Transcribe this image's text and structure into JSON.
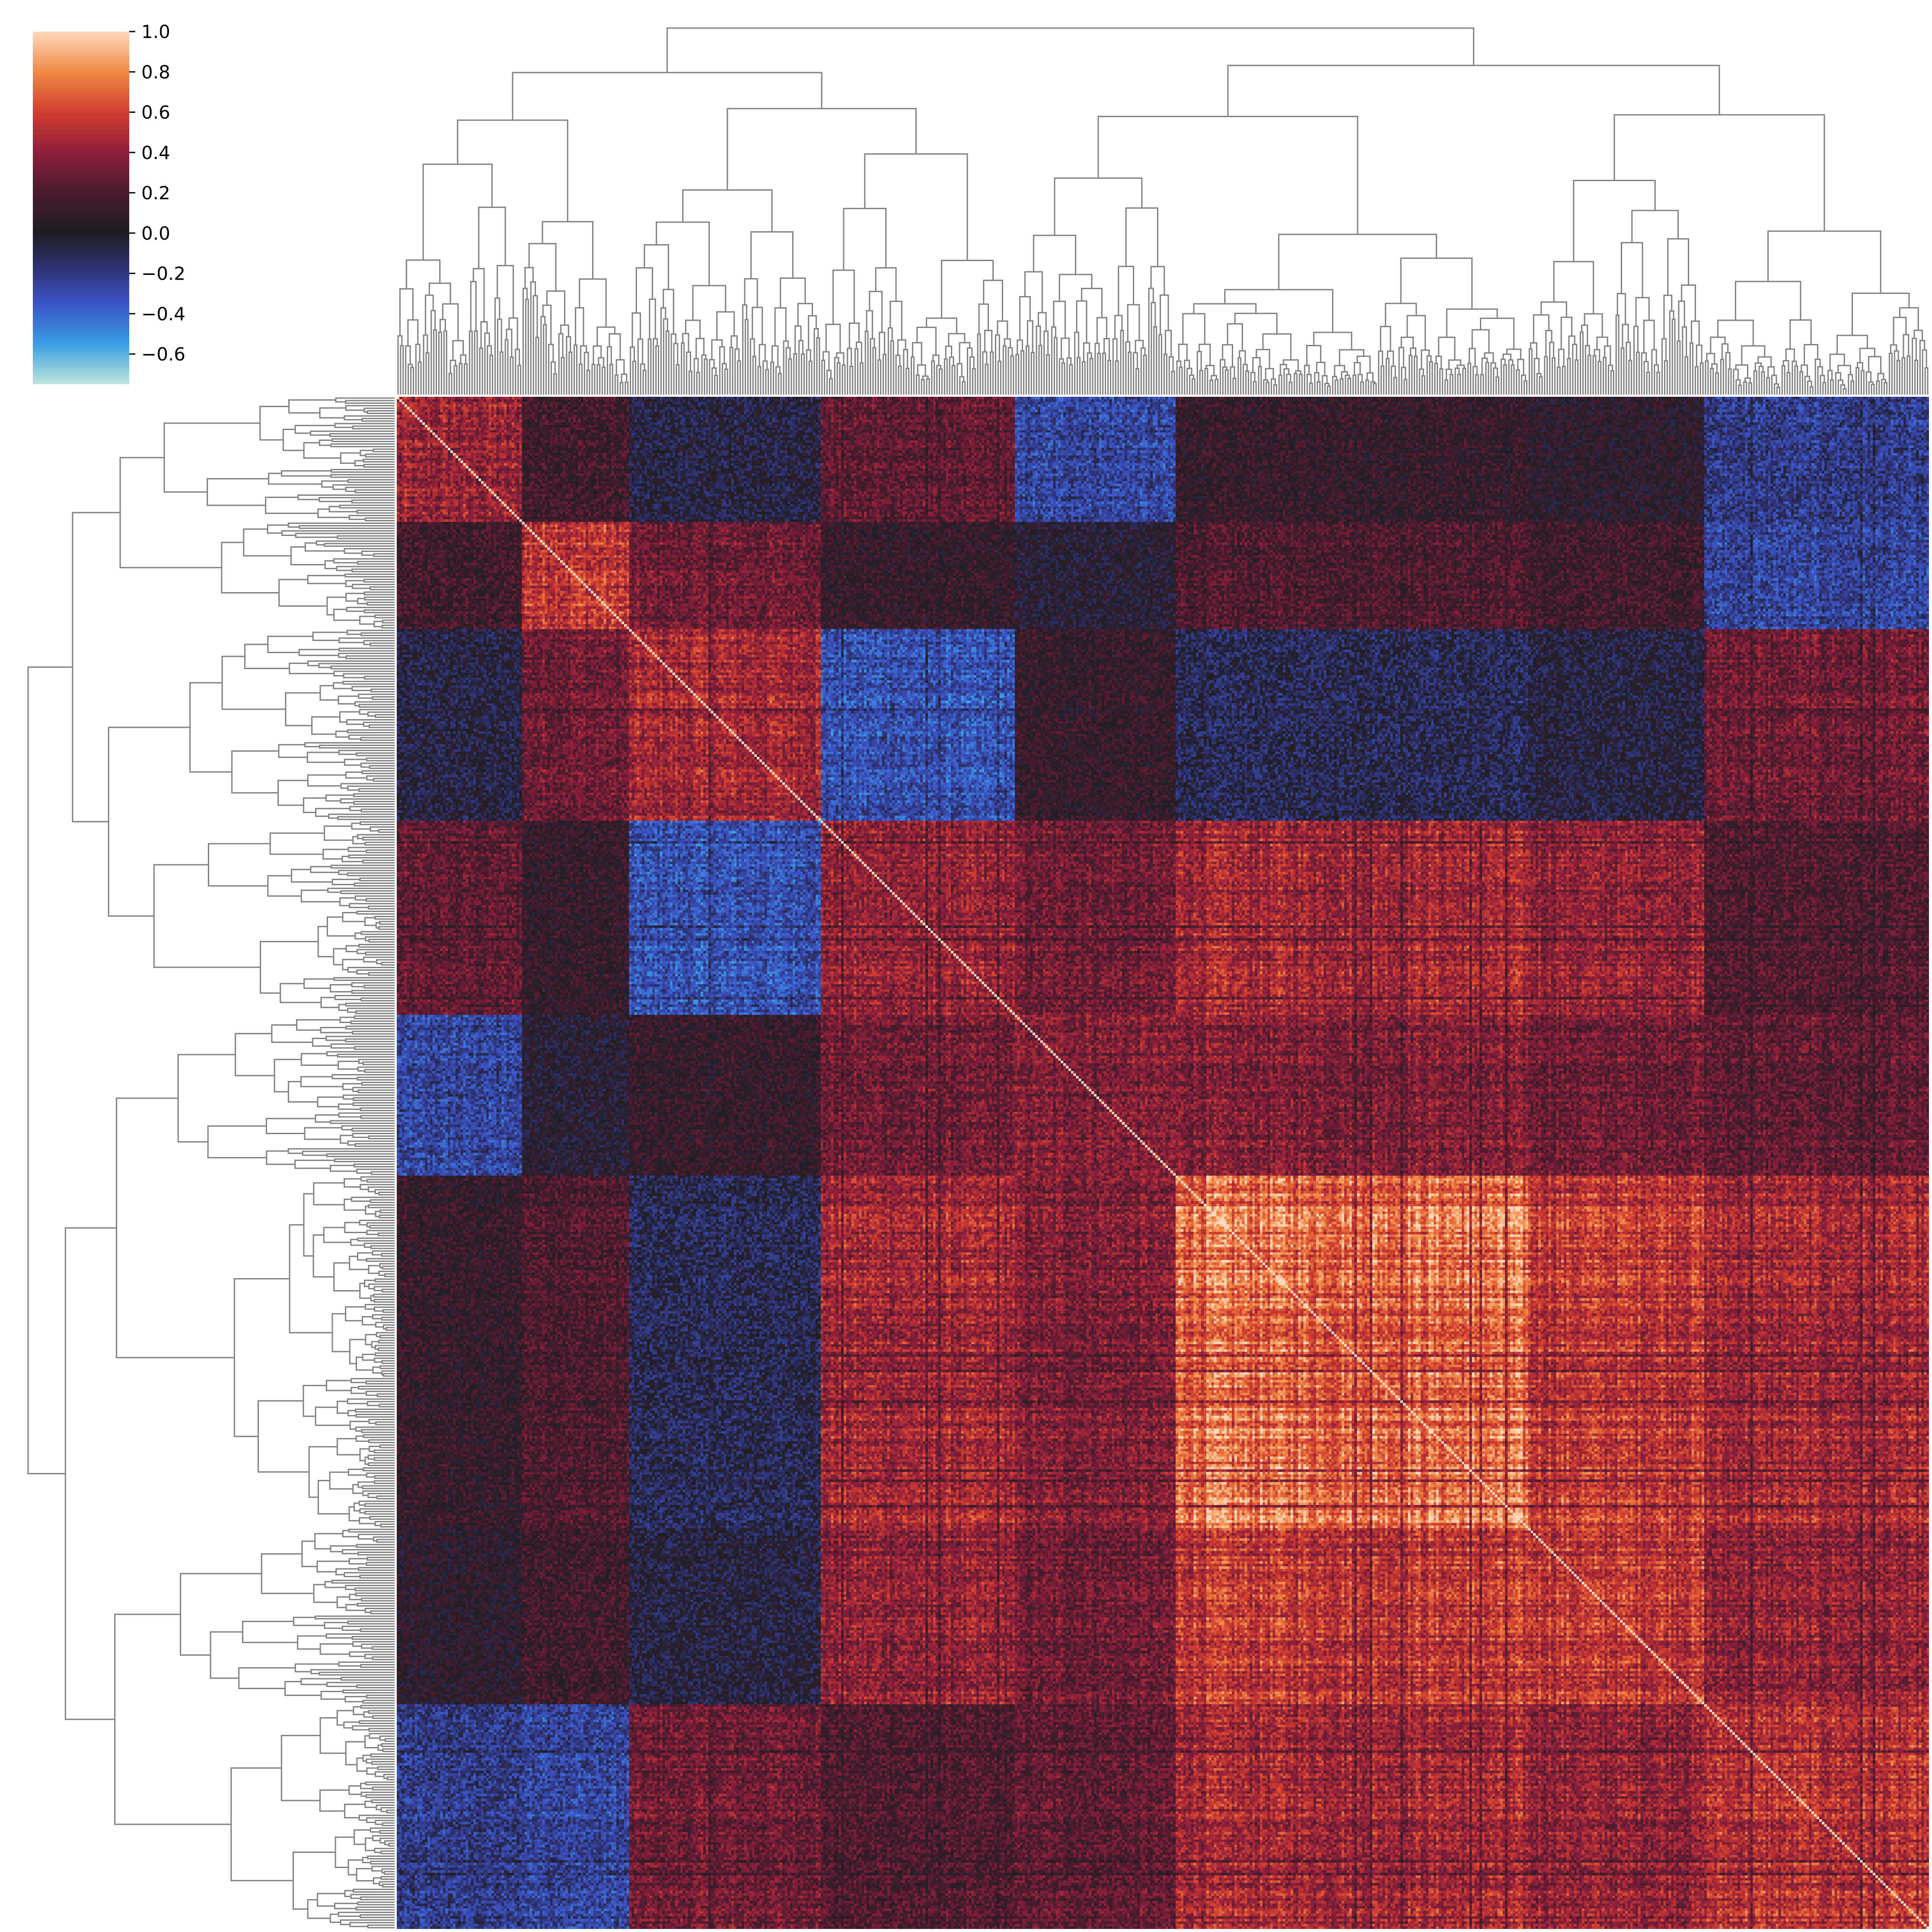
{
  "chart_data": {
    "type": "heatmap",
    "title": "",
    "xlabel": "",
    "ylabel": "",
    "matrix_kind": "clustered correlation matrix (symmetric, diagonal = 1.0)",
    "dendrograms": [
      "top",
      "left"
    ],
    "colormap": "icefire",
    "colormap_stops": [
      {
        "value": -0.75,
        "color": "#bde7db"
      },
      {
        "value": -0.55,
        "color": "#3a9ee6"
      },
      {
        "value": -0.35,
        "color": "#3b55c7"
      },
      {
        "value": -0.15,
        "color": "#2e2f6a"
      },
      {
        "value": 0.0,
        "color": "#1e1e23"
      },
      {
        "value": 0.2,
        "color": "#4a1b2e"
      },
      {
        "value": 0.4,
        "color": "#8e1f3c"
      },
      {
        "value": 0.6,
        "color": "#d23e2f"
      },
      {
        "value": 0.8,
        "color": "#f08a45"
      },
      {
        "value": 1.0,
        "color": "#ffd9bd"
      }
    ],
    "value_range": [
      -0.75,
      1.0
    ],
    "colorbar": {
      "placement": "top-left",
      "ticks": [
        1.0,
        0.8,
        0.6,
        0.4,
        0.2,
        0.0,
        -0.2,
        -0.4,
        -0.6
      ],
      "tick_labels": [
        "1.0",
        "0.8",
        "0.6",
        "0.4",
        "0.2",
        "0.0",
        "−0.2",
        "−0.4",
        "−0.6"
      ]
    },
    "n_items": 600,
    "clusters": [
      {
        "end_fraction": 0.081
      },
      {
        "end_fraction": 0.152
      },
      {
        "end_fraction": 0.276
      },
      {
        "end_fraction": 0.403
      },
      {
        "end_fraction": 0.508
      },
      {
        "end_fraction": 0.738
      },
      {
        "end_fraction": 0.854
      },
      {
        "end_fraction": 1.0
      }
    ],
    "cluster_mean_correlation": [
      [
        0.4,
        0.15,
        -0.05,
        0.25,
        -0.25,
        0.1,
        0.05,
        -0.2
      ],
      [
        0.15,
        0.55,
        0.3,
        0.1,
        0.0,
        0.2,
        0.15,
        -0.25
      ],
      [
        -0.05,
        0.3,
        0.45,
        -0.3,
        0.1,
        -0.1,
        -0.05,
        0.3
      ],
      [
        0.25,
        0.1,
        -0.3,
        0.4,
        0.3,
        0.45,
        0.4,
        0.2
      ],
      [
        -0.25,
        0.0,
        0.1,
        0.3,
        0.35,
        0.35,
        0.3,
        0.25
      ],
      [
        0.1,
        0.2,
        -0.1,
        0.45,
        0.35,
        0.72,
        0.55,
        0.45
      ],
      [
        0.05,
        0.15,
        -0.05,
        0.4,
        0.3,
        0.55,
        0.55,
        0.4
      ],
      [
        -0.2,
        -0.25,
        0.3,
        0.2,
        0.25,
        0.45,
        0.4,
        0.5
      ]
    ]
  }
}
